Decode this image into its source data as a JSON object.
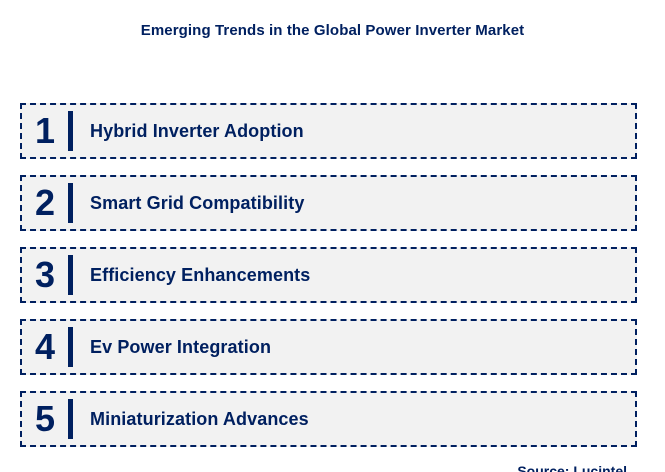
{
  "title": "Emerging Trends in the Global Power Inverter Market",
  "trends": [
    {
      "number": "1",
      "label": "Hybrid Inverter Adoption"
    },
    {
      "number": "2",
      "label": "Smart Grid Compatibility"
    },
    {
      "number": "3",
      "label": "Efficiency Enhancements"
    },
    {
      "number": "4",
      "label": "Ev Power Integration"
    },
    {
      "number": "5",
      "label": "Miniaturization Advances"
    }
  ],
  "source": "Source: Lucintel",
  "colors": {
    "navy": "#002060",
    "row_background": "#F2F2F2",
    "page_background": "#FFFFFF"
  }
}
